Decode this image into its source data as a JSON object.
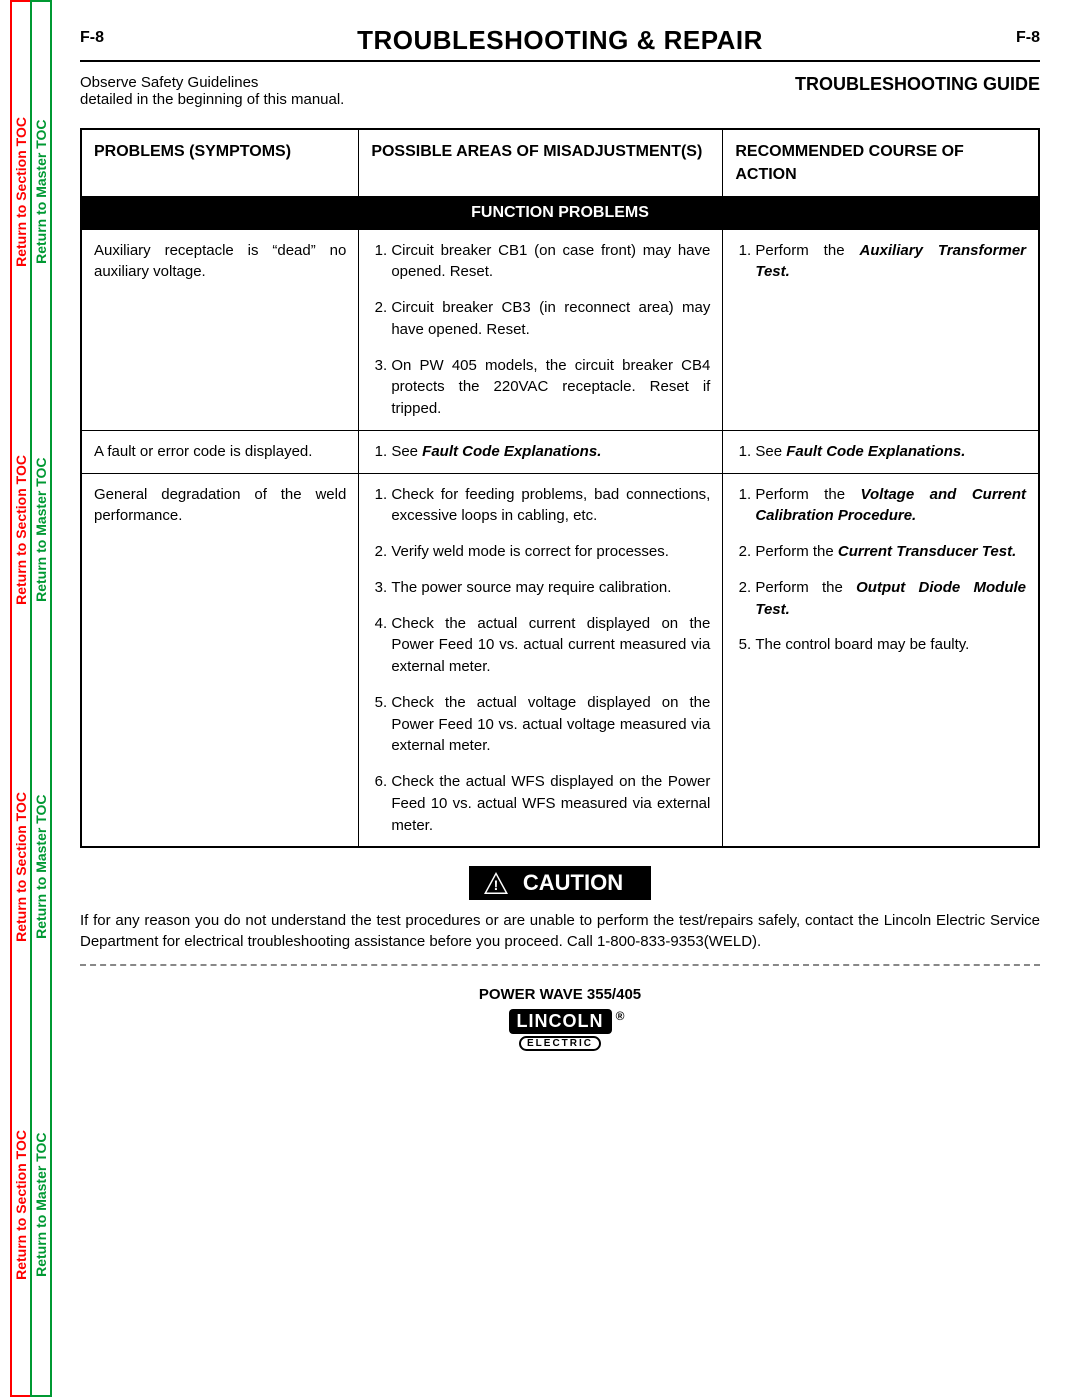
{
  "page_number": "F-8",
  "title": "TROUBLESHOOTING & REPAIR",
  "safety_note_line1": "Observe Safety Guidelines",
  "safety_note_line2": "detailed in the beginning of this manual.",
  "guide_label": "TROUBLESHOOTING GUIDE",
  "side_tabs": {
    "section": "Return to Section TOC",
    "master": "Return to Master TOC"
  },
  "table": {
    "col1_header": "PROBLEMS (SYMPTOMS)",
    "col2_header": "POSSIBLE AREAS OF MISADJUSTMENT(S)",
    "col3_header": "RECOMMENDED COURSE OF ACTION",
    "section_title": "FUNCTION PROBLEMS",
    "rows": [
      {
        "problem": "Auxiliary receptacle is “dead” no auxiliary voltage.",
        "misadjust": [
          "Circuit breaker CB1 (on case front) may have opened.  Reset.",
          "Circuit breaker CB3 (in reconnect area) may have opened. Reset.",
          "On PW 405 models, the circuit breaker CB4 protects the 220VAC receptacle.  Reset if tripped."
        ],
        "action_html": "<ol><li>Perform the <span class='bi'>Auxiliary Transformer Test.</span></li></ol>"
      },
      {
        "problem": "A fault or error code is displayed.",
        "misadjust_html": "<ol><li>See <span class='bi'>Fault Code Explanations.</span></li></ol>",
        "action_html": "<ol><li>See <span class='bi'>Fault Code Explanations.</span></li></ol>"
      },
      {
        "problem": "General degradation of the weld performance.",
        "misadjust": [
          "Check for feeding problems, bad connections, excessive loops in cabling, etc.",
          "Verify weld mode is correct for processes.",
          "The power source may require calibration.",
          "Check the actual current displayed on the Power Feed 10 vs. actual current measured via external meter.",
          "Check the actual voltage displayed on the Power Feed 10 vs. actual voltage measured via external meter.",
          "Check the actual WFS displayed on the Power Feed 10 vs. actual WFS measured via external meter."
        ],
        "action_html": "<ol><li>Perform the <span class='bi'>Voltage and Current Calibration Procedure.</span></li><li>Perform the <span class='bi'>Current Transducer Test.</span></li><li value='2'>Perform the <span class='bi'>Output Diode Module Test.</span></li><li value='5'>The control board may be faulty.</li></ol>"
      }
    ]
  },
  "caution": {
    "label": "CAUTION",
    "text": "If for any reason you do not understand the test procedures or are unable to perform the test/repairs safely, contact the Lincoln Electric Service Department for electrical troubleshooting assistance before you proceed. Call  1-800-833-9353(WELD)."
  },
  "footer": {
    "model": "POWER WAVE 355/405",
    "brand_top": "LINCOLN",
    "brand_bot": "ELECTRIC"
  },
  "colors": {
    "red": "#ff0000",
    "green": "#009933",
    "black": "#000000",
    "white": "#ffffff"
  },
  "fonts": {
    "body_pt": 15,
    "title_pt": 26
  }
}
